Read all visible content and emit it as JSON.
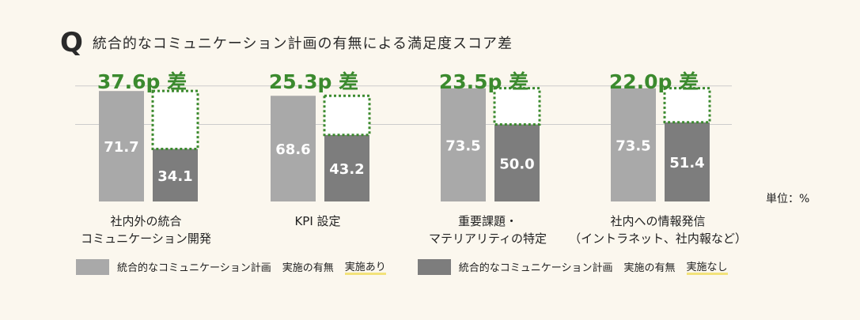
{
  "title": {
    "q_mark": "Q",
    "text": "統合的なコミュニケーション計画の有無による満足度スコア差"
  },
  "unit": "単位：%",
  "colors": {
    "with_bar": "#a9a9a9",
    "without_bar": "#7d7d7d",
    "diff_text": "#3b8a2e",
    "dotted_box": "#3b8a2e",
    "gridline": "#cccccc",
    "highlight": "#f3e27a"
  },
  "legend": [
    {
      "label": "統合的なコミュニケーション計画",
      "status": "実施の有無",
      "value": "実施あり",
      "color": "#a9a9a9"
    },
    {
      "label": "統合的なコミュニケーション計画",
      "status": "実施の有無",
      "value": "実施なし",
      "color": "#7d7d7d"
    }
  ],
  "chart_data": {
    "type": "bar",
    "categories": [
      [
        "社内外の統合",
        "コミュニケーション開発"
      ],
      [
        "KPI 設定"
      ],
      [
        "重要課題・",
        "マテリアリティの特定"
      ],
      [
        "社内への情報発信",
        "（イントラネット、社内報など）"
      ]
    ],
    "series": [
      {
        "name": "実施あり",
        "values": [
          71.7,
          68.6,
          73.5,
          73.5
        ]
      },
      {
        "name": "実施なし",
        "values": [
          34.1,
          43.2,
          50.0,
          51.4
        ]
      }
    ],
    "value_labels": [
      [
        "71.7",
        "68.6",
        "73.5",
        "73.5"
      ],
      [
        "34.1",
        "43.2",
        "50.0",
        "51.4"
      ]
    ],
    "differences": [
      "37.6p 差",
      "25.3p 差",
      "23.5p 差",
      "22.0p 差"
    ],
    "ylim": [
      0,
      100
    ],
    "grid": true,
    "legend_position": "bottom"
  }
}
